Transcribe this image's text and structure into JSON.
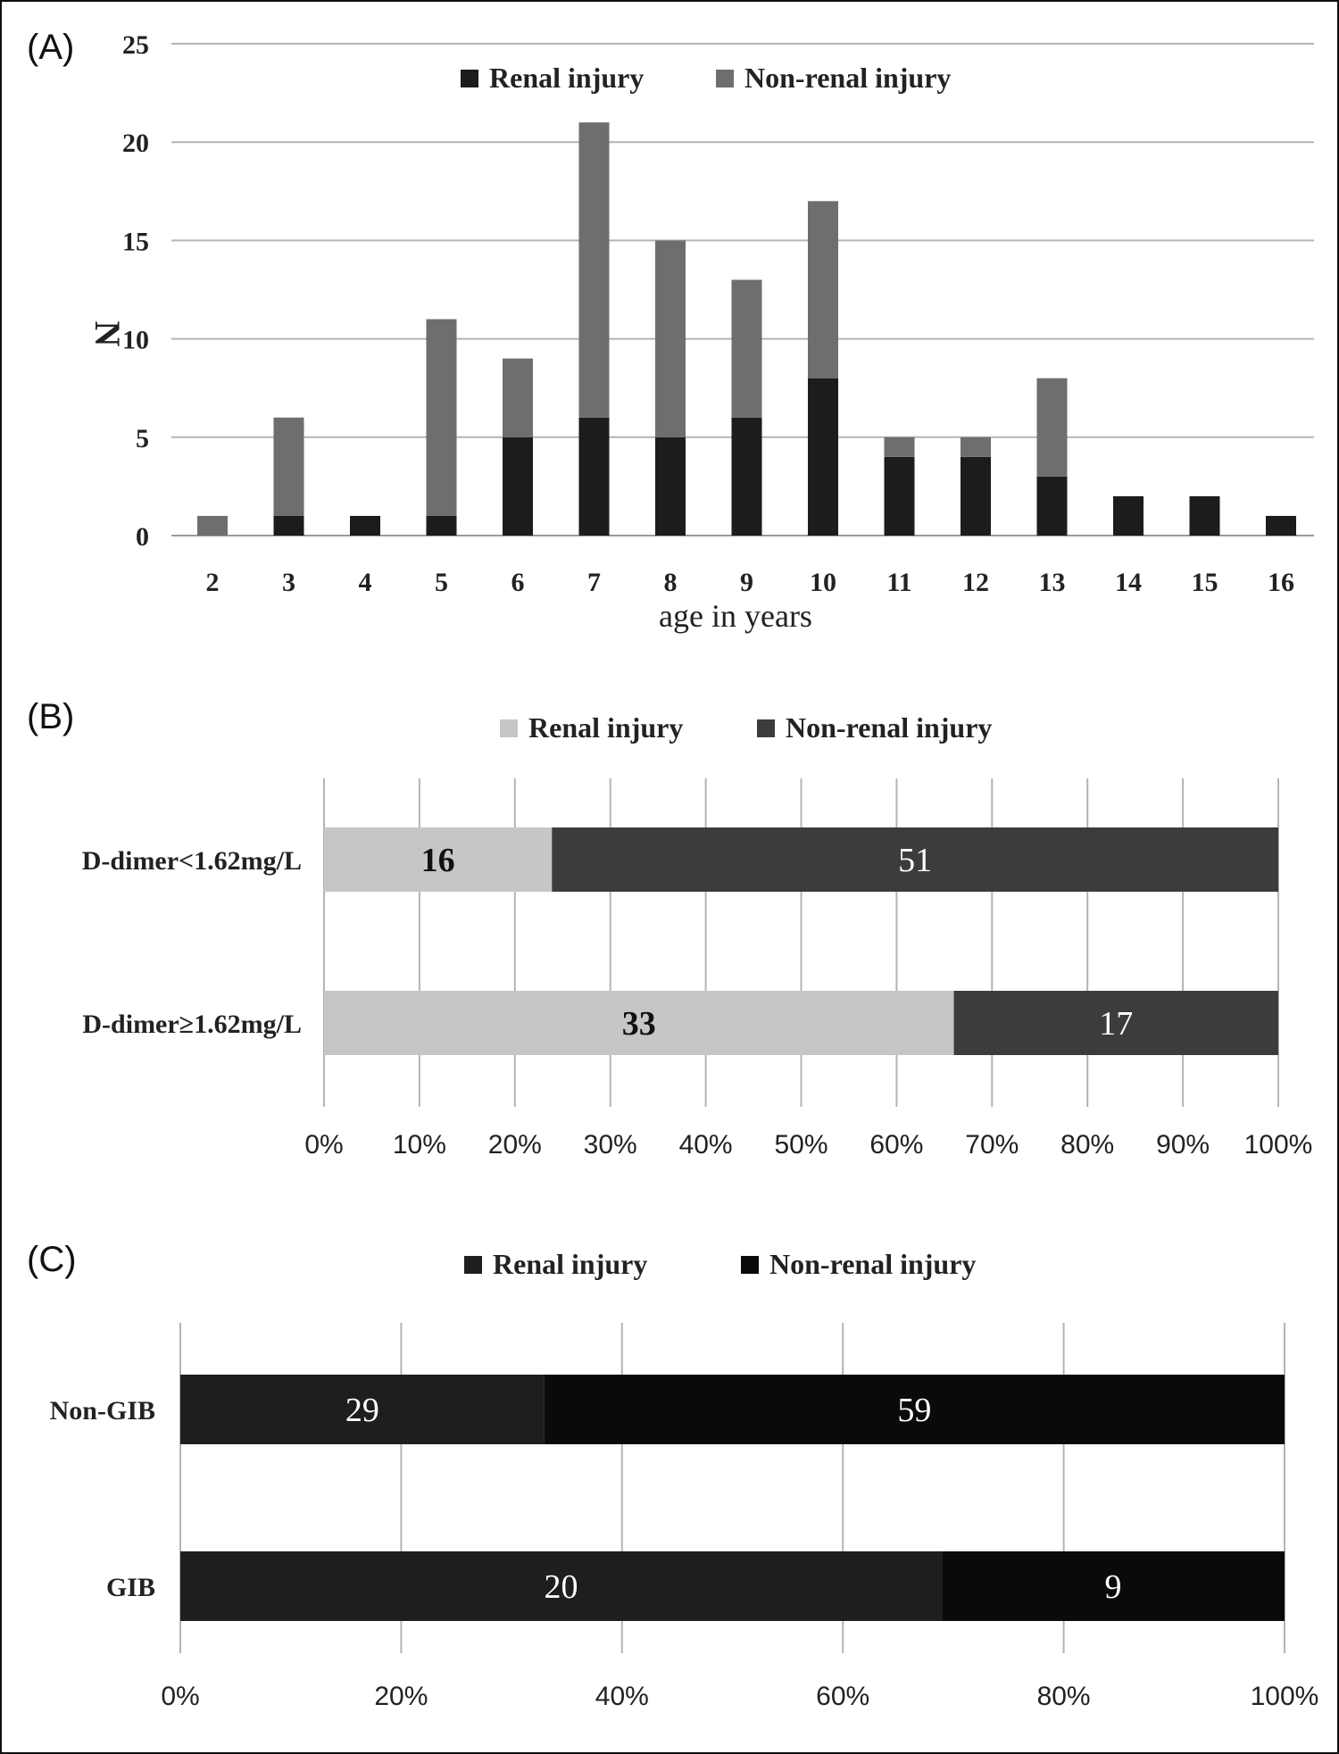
{
  "chart_data": [
    {
      "type": "bar",
      "stacked": true,
      "panel_label": "(A)",
      "xlabel": "age in years",
      "ylabel": "N",
      "ylim": [
        0,
        25
      ],
      "yticks": [
        "0",
        "5",
        "10",
        "15",
        "20",
        "25"
      ],
      "grid": true,
      "legend_position": "top",
      "categories": [
        "2",
        "3",
        "4",
        "5",
        "6",
        "7",
        "8",
        "9",
        "10",
        "11",
        "12",
        "13",
        "14",
        "15",
        "16"
      ],
      "series": [
        {
          "name": "Renal injury",
          "color": "#1c1c1c",
          "values": [
            0,
            1,
            1,
            1,
            5,
            6,
            5,
            6,
            8,
            4,
            4,
            3,
            2,
            2,
            1
          ]
        },
        {
          "name": "Non-renal injury",
          "color": "#6e6e6e",
          "values": [
            1,
            5,
            0,
            10,
            4,
            15,
            10,
            7,
            9,
            1,
            1,
            5,
            0,
            0,
            0
          ]
        }
      ]
    },
    {
      "type": "bar",
      "orientation": "horizontal",
      "stacked_percent": true,
      "panel_label": "(B)",
      "xticks": [
        "0%",
        "10%",
        "20%",
        "30%",
        "40%",
        "50%",
        "60%",
        "70%",
        "80%",
        "90%",
        "100%"
      ],
      "grid": true,
      "legend_position": "top",
      "categories": [
        "D-dimer<1.62mg/L",
        "D-dimer≥1.62mg/L"
      ],
      "series": [
        {
          "name": "Renal injury",
          "color": "#c6c6c6",
          "label_color": "#111111",
          "values": [
            16,
            33
          ]
        },
        {
          "name": "Non-renal injury",
          "color": "#3c3c3c",
          "label_color": "#ffffff",
          "values": [
            51,
            17
          ]
        }
      ]
    },
    {
      "type": "bar",
      "orientation": "horizontal",
      "stacked_percent": true,
      "panel_label": "(C)",
      "xticks": [
        "0%",
        "20%",
        "40%",
        "60%",
        "80%",
        "100%"
      ],
      "grid": true,
      "legend_position": "top",
      "categories": [
        "Non-GIB",
        "GIB"
      ],
      "series": [
        {
          "name": "Renal injury",
          "color": "#1e1e1e",
          "label_color": "#ffffff",
          "values": [
            29,
            20
          ]
        },
        {
          "name": "Non-renal injury",
          "color": "#0a0a0a",
          "label_color": "#ffffff",
          "values": [
            59,
            9
          ]
        }
      ]
    }
  ]
}
